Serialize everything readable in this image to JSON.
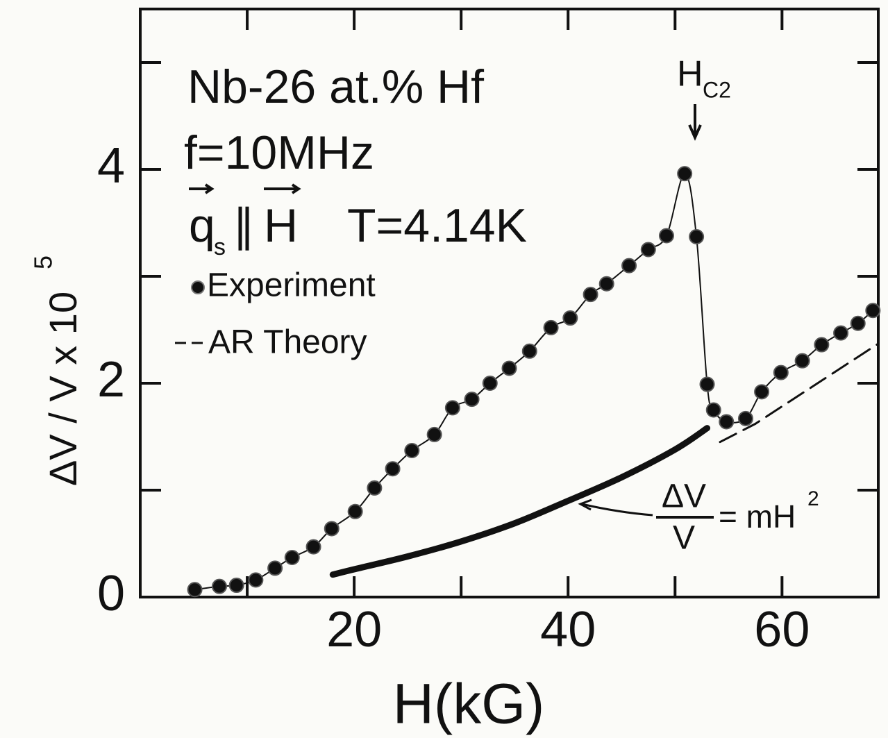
{
  "chart_data": {
    "type": "line",
    "xlabel": "H(kG)",
    "ylabel": "ΔV / V x 10",
    "ylabel_exponent": "5",
    "xlim": [
      0,
      69
    ],
    "ylim": [
      0,
      5.5
    ],
    "xticks": [
      20,
      40,
      60
    ],
    "yticks": [
      0,
      2,
      4
    ],
    "x_minor_ticks": [
      10,
      30,
      50
    ],
    "y_minor_ticks": [
      1,
      3,
      5
    ],
    "annotations": {
      "composition": "Nb-26 at.% Hf",
      "frequency": "f=10MHz",
      "wave_vector": "q",
      "wave_vector_sub": "s",
      "parallel": "∥",
      "field": "H",
      "temperature": "T=4.14K",
      "hc2": "H",
      "hc2_sub": "C2",
      "formula_numerator": "ΔV",
      "formula_denominator": "V",
      "formula_rhs": "= mH",
      "formula_exponent": "2"
    },
    "series": [
      {
        "name": "Experiment",
        "color": "#111111",
        "x": [
          5.1,
          7.4,
          9.0,
          10.8,
          12.6,
          14.2,
          16.2,
          17.9,
          20.1,
          21.9,
          23.6,
          25.4,
          27.5,
          29.2,
          31.0,
          32.7,
          34.5,
          36.4,
          38.4,
          40.2,
          42.1,
          43.6,
          45.7,
          47.5,
          49.2,
          50.9,
          52.0,
          53.0,
          53.6,
          54.8,
          56.6,
          58.1,
          59.9,
          61.9,
          63.7,
          65.5,
          67.1,
          68.5
        ],
        "values": [
          0.07,
          0.1,
          0.11,
          0.16,
          0.27,
          0.37,
          0.47,
          0.64,
          0.8,
          1.02,
          1.2,
          1.37,
          1.52,
          1.77,
          1.85,
          2.0,
          2.14,
          2.3,
          2.52,
          2.61,
          2.83,
          2.93,
          3.1,
          3.25,
          3.38,
          3.96,
          3.37,
          1.99,
          1.75,
          1.64,
          1.67,
          1.92,
          2.1,
          2.21,
          2.36,
          2.47,
          2.56,
          2.68
        ]
      },
      {
        "name": "AR Theory",
        "color": "#111111",
        "dash": true,
        "x": [
          54.2,
          57.5,
          69
        ],
        "values": [
          1.45,
          1.62,
          2.37
        ]
      },
      {
        "color": "#111111",
        "x": [
          18,
          20,
          25,
          30,
          35,
          40,
          45,
          50,
          53
        ],
        "values": [
          0.21,
          0.26,
          0.38,
          0.52,
          0.69,
          0.9,
          1.12,
          1.38,
          1.58
        ]
      }
    ]
  }
}
